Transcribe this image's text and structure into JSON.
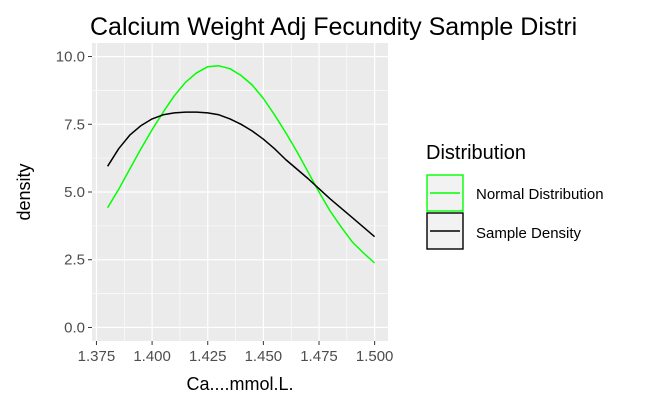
{
  "chart_data": {
    "type": "line",
    "title": "Calcium Weight Adj Fecundity Sample Distri",
    "xlabel": "Ca....mmol.L.",
    "ylabel": "density",
    "xlim": [
      1.373,
      1.506
    ],
    "ylim": [
      -0.5,
      10.5
    ],
    "x_ticks": [
      1.375,
      1.4,
      1.425,
      1.45,
      1.475,
      1.5
    ],
    "x_tick_labels": [
      "1.375",
      "1.400",
      "1.425",
      "1.450",
      "1.475",
      "1.500"
    ],
    "y_ticks": [
      0,
      2.5,
      5,
      7.5,
      10
    ],
    "y_tick_labels": [
      "0.0",
      "2.5",
      "5.0",
      "7.5",
      "10.0"
    ],
    "grid": true,
    "legend": {
      "title": "Distribution",
      "placement": "right",
      "entries": [
        "Normal Distribution",
        "Sample Density"
      ]
    },
    "series": [
      {
        "name": "Normal Distribution",
        "color": "#00ff00",
        "x": [
          1.38,
          1.385,
          1.39,
          1.395,
          1.4,
          1.405,
          1.41,
          1.415,
          1.42,
          1.425,
          1.43,
          1.435,
          1.44,
          1.445,
          1.45,
          1.455,
          1.46,
          1.465,
          1.47,
          1.475,
          1.48,
          1.485,
          1.49,
          1.495,
          1.5
        ],
        "y": [
          4.42,
          5.1,
          5.85,
          6.6,
          7.3,
          7.95,
          8.55,
          9.05,
          9.4,
          9.62,
          9.66,
          9.55,
          9.3,
          8.95,
          8.45,
          7.85,
          7.2,
          6.5,
          5.75,
          5.0,
          4.3,
          3.7,
          3.15,
          2.75,
          2.38
        ]
      },
      {
        "name": "Sample Density",
        "color": "#000000",
        "x": [
          1.38,
          1.385,
          1.39,
          1.395,
          1.4,
          1.405,
          1.41,
          1.415,
          1.42,
          1.425,
          1.43,
          1.435,
          1.44,
          1.445,
          1.45,
          1.455,
          1.46,
          1.465,
          1.47,
          1.475,
          1.48,
          1.485,
          1.49,
          1.495,
          1.5
        ],
        "y": [
          5.95,
          6.6,
          7.1,
          7.45,
          7.7,
          7.85,
          7.92,
          7.95,
          7.95,
          7.92,
          7.85,
          7.7,
          7.5,
          7.25,
          6.95,
          6.6,
          6.2,
          5.85,
          5.5,
          5.12,
          4.75,
          4.4,
          4.05,
          3.7,
          3.35
        ]
      }
    ]
  }
}
